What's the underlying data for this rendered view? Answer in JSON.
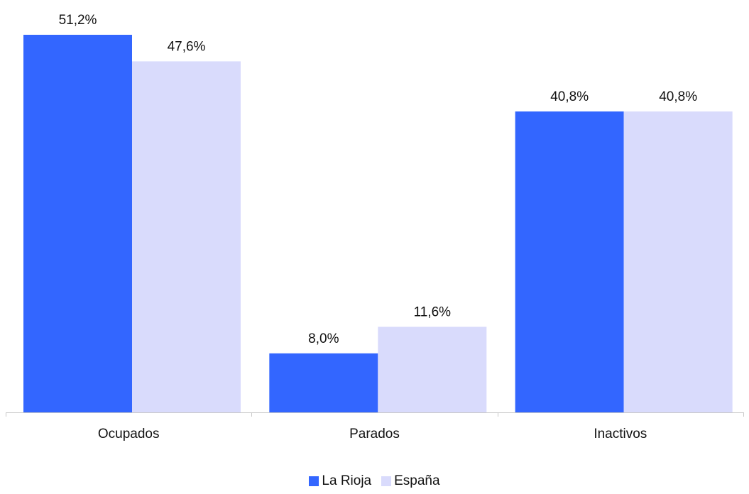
{
  "chart_data": {
    "type": "bar",
    "categories": [
      "Ocupados",
      "Parados",
      "Inactivos"
    ],
    "series": [
      {
        "name": "La Rioja",
        "values": [
          51.2,
          8.0,
          40.8
        ],
        "labels": [
          "51,2%",
          "8,0%",
          "40,8%"
        ],
        "color": "#3366ff"
      },
      {
        "name": "España",
        "values": [
          47.6,
          11.6,
          40.8
        ],
        "labels": [
          "47,6%",
          "11,6%",
          "40,8%"
        ],
        "color": "#d9dbfc"
      }
    ],
    "title": "",
    "xlabel": "",
    "ylabel": "",
    "ylim": [
      0,
      51.2
    ],
    "grid": false,
    "legend": "bottom"
  }
}
